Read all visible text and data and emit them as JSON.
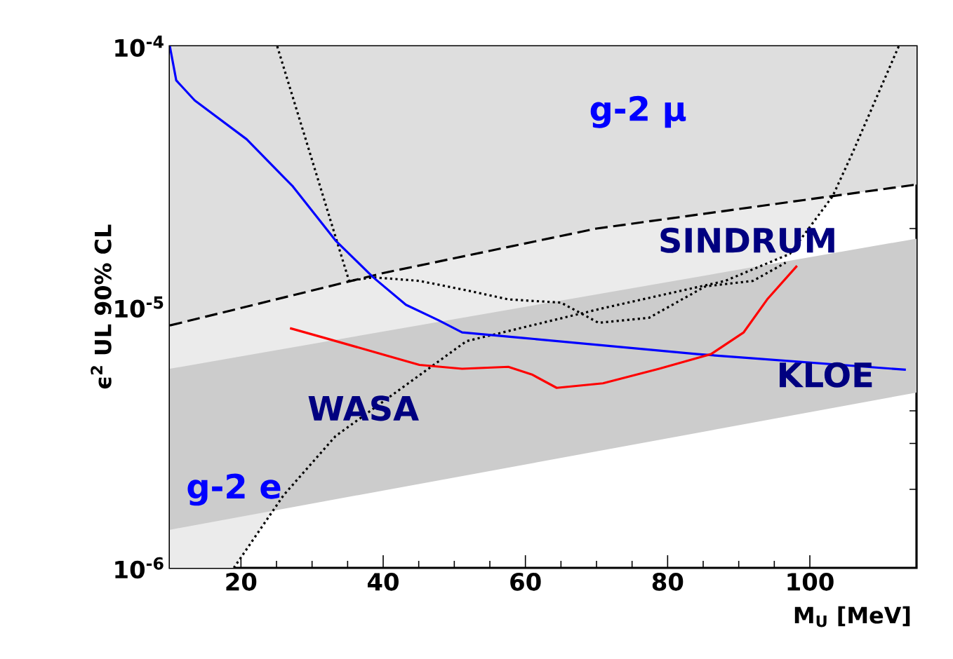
{
  "chart_data": {
    "type": "line",
    "xlabel": "M$_{U}$ [MeV]",
    "ylabel": "ϵ$^{2}$ UL 90% CL",
    "xlim": [
      10,
      115
    ],
    "ylim": [
      1e-06,
      0.0001
    ],
    "log": "y",
    "xticks": [
      20,
      40,
      60,
      80,
      100
    ],
    "yticks": [
      {
        "value": 1e-06,
        "label": "10$^{-6}$"
      },
      {
        "value": 1e-05,
        "label": "10$^{-5}$"
      },
      {
        "value": 0.0001,
        "label": "10$^{-4}$"
      }
    ],
    "annotations": [
      "g-2 μ",
      "SINDRUM",
      "KLOE",
      "WASA",
      "g-2 e"
    ],
    "series": [
      {
        "type": "area",
        "color": "#cccccc",
        "x": [
          10,
          115
        ],
        "values": [
          null,
          null
        ],
        "lower": [
          1.4e-06,
          4.7e-06
        ],
        "upper": [
          5.8e-06,
          1.83e-05
        ]
      },
      {
        "color": "#000000",
        "line_style": "dashed",
        "x": [
          10,
          40,
          70,
          115
        ],
        "values": [
          8.5e-06,
          1.35e-05,
          2e-05,
          2.95e-05
        ],
        "lower": [
          8.5e-06,
          1.35e-05,
          2e-05,
          2.95e-05
        ],
        "upper": [
          0.0001,
          0.0001,
          0.0001,
          0.0001
        ]
      },
      {
        "color": "#000000",
        "line_style": "dotted",
        "x": [
          10,
          19,
          26,
          33.3,
          51.7,
          70.9,
          88.1,
          97.2,
          103.2,
          106,
          112.5
        ],
        "values": [
          null,
          1e-06,
          1.9e-06,
          3.2e-06,
          7.4e-06,
          9.9e-06,
          1.26e-05,
          1.6e-05,
          2.66e-05,
          3.9e-05,
          0.0001
        ],
        "lower": [
          1e-06,
          1e-06,
          1.9e-06,
          3.2e-06,
          7.4e-06,
          9.9e-06,
          1.26e-05,
          1.6e-05,
          2.66e-05,
          3.9e-05,
          0.0001
        ],
        "upper": [
          0.0001,
          0.0001,
          0.0001,
          0.0001,
          0.0001,
          0.0001,
          0.0001,
          0.0001,
          0.0001,
          0.0001,
          0.0001
        ]
      },
      {
        "color": "#000000",
        "line_style": "dotted",
        "x": [
          25.1,
          35.2,
          38.6,
          45.1,
          51.7,
          57.6,
          65,
          70.3,
          77.4,
          85.3,
          92,
          96.6
        ],
        "values": [
          0.0001,
          1.26e-05,
          1.3e-05,
          1.26e-05,
          1.16e-05,
          1.07e-05,
          1.04e-05,
          8.7e-06,
          9.1e-06,
          1.2e-05,
          1.26e-05,
          1.48e-05
        ]
      },
      {
        "color": "#0000ff",
        "line_style": "solid",
        "x": [
          10,
          10.9,
          13.5,
          20.8,
          27.3,
          33.3,
          38.6,
          43.2,
          47.8,
          51.1,
          60,
          84.2,
          113.5
        ],
        "values": [
          0.0001,
          7.4e-05,
          6.2e-05,
          4.4e-05,
          2.9e-05,
          1.8e-05,
          1.3e-05,
          1.02e-05,
          8.9e-06,
          8e-06,
          7.6e-06,
          6.6e-06,
          5.75e-06
        ]
      },
      {
        "color": "#ff0000",
        "line_style": "solid",
        "x": [
          26.9,
          31.9,
          45.1,
          51.1,
          57.6,
          61,
          64.4,
          70.9,
          78.8,
          86.1,
          90.7,
          94,
          98.2
        ],
        "values": [
          8.3e-06,
          7.6e-06,
          6e-06,
          5.8e-06,
          5.9e-06,
          5.5e-06,
          4.9e-06,
          5.1e-06,
          5.8e-06,
          6.6e-06,
          8e-06,
          1.07e-05,
          1.44e-05
        ]
      }
    ]
  }
}
